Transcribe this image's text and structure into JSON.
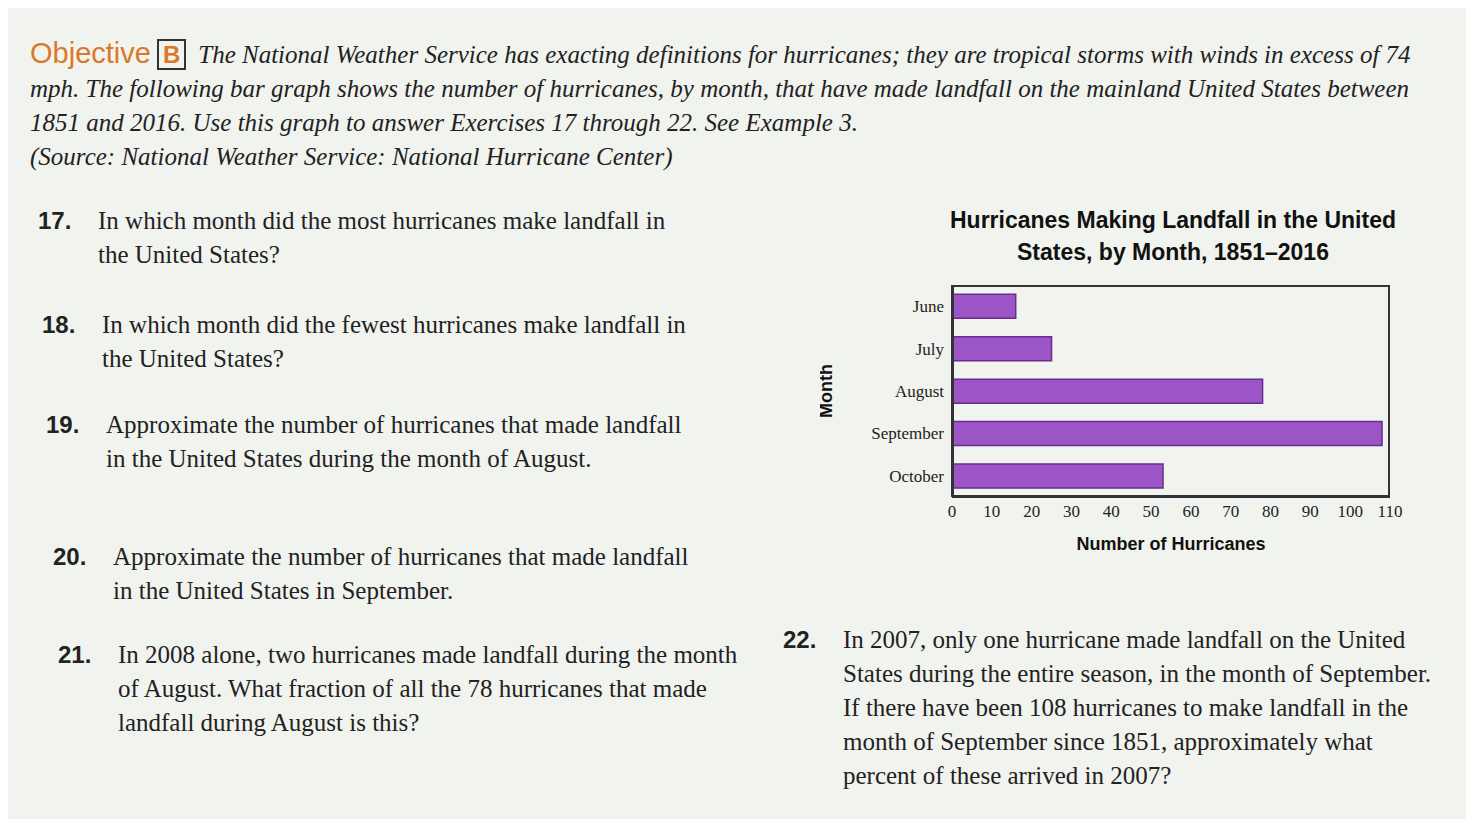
{
  "document": {
    "heading": {
      "label": "Objective",
      "letter": "B",
      "text": "The National Weather Service has exacting definitions for hurricanes; they are tropical storms with winds in excess of 74 mph. The following bar graph shows the number of hurricanes, by month, that have made landfall on the mainland United States between 1851 and 2016. Use this graph to answer Exercises 17 through 22. See Example 3.",
      "source": "(Source: National Weather Service: National Hurricane Center)"
    },
    "exercises": [
      {
        "number": "17.",
        "text": "In which month did the most hurricanes make landfall in the United States?"
      },
      {
        "number": "18.",
        "text": "In which month did the fewest hurricanes make landfall in the United States?"
      },
      {
        "number": "19.",
        "text": "Approximate the number of hurricanes that made landfall in the United States during the month of August."
      },
      {
        "number": "20.",
        "text": "Approximate the number of hurricanes that made landfall in the United States in September."
      },
      {
        "number": "21.",
        "text": "In 2008 alone, two hurricanes made landfall during the month of August. What fraction of all the 78 hurricanes that made landfall during August is this?"
      },
      {
        "number": "22.",
        "text": "In 2007, only one hurricane made landfall on the United States during the entire season, in the month of September. If there have been 108 hurricanes to make landfall in the month of September since 1851, approximately what percent of these arrived in 2007?"
      }
    ]
  },
  "chart_data": {
    "type": "bar",
    "orientation": "horizontal",
    "title": "Hurricanes Making Landfall in the United States, by Month, 1851–2016",
    "x_label": "Number of Hurricanes",
    "y_label": "Month",
    "categories": [
      "June",
      "July",
      "August",
      "September",
      "October"
    ],
    "values": [
      16,
      25,
      78,
      108,
      53
    ],
    "color": "#9b55c6",
    "xlim": [
      0,
      110
    ],
    "xticks": [
      0,
      10,
      20,
      30,
      40,
      50,
      60,
      70,
      80,
      90,
      100,
      110
    ],
    "grid": false
  }
}
